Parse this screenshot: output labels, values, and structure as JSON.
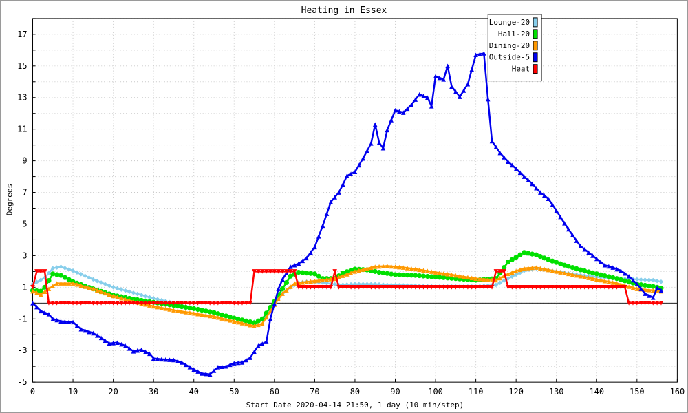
{
  "chart_data": {
    "type": "line",
    "title": "Heating in Essex",
    "xlabel": "Start Date 2020-04-14 21:50, 1 day (10 min/step)",
    "ylabel": "Degrees",
    "xlim": [
      0,
      160
    ],
    "ylim": [
      -5,
      18
    ],
    "xticks": [
      "0",
      "10",
      "20",
      "30",
      "40",
      "50",
      "60",
      "70",
      "80",
      "90",
      "100",
      "110",
      "120",
      "130",
      "140",
      "150",
      "160"
    ],
    "yticks": [
      "-5",
      "-3",
      "-1",
      "1",
      "3",
      "5",
      "7",
      "9",
      "11",
      "13",
      "15",
      "17"
    ],
    "grid": true,
    "legend_position": "top-right",
    "series": [
      {
        "name": "Lounge-20",
        "color": "#87ceeb",
        "marker": "diamond",
        "keypoints": [
          [
            0,
            1.2
          ],
          [
            3,
            1.6
          ],
          [
            5,
            2.2
          ],
          [
            7,
            2.3
          ],
          [
            10,
            2.05
          ],
          [
            15,
            1.5
          ],
          [
            20,
            1.0
          ],
          [
            25,
            0.65
          ],
          [
            30,
            0.3
          ],
          [
            35,
            0.0
          ],
          [
            40,
            -0.35
          ],
          [
            45,
            -0.65
          ],
          [
            50,
            -0.95
          ],
          [
            53,
            -1.15
          ],
          [
            56,
            -1.2
          ],
          [
            58,
            -0.9
          ],
          [
            60,
            -0.1
          ],
          [
            62,
            0.6
          ],
          [
            64,
            1.0
          ],
          [
            66,
            1.3
          ],
          [
            68,
            1.35
          ],
          [
            72,
            1.3
          ],
          [
            76,
            1.15
          ],
          [
            80,
            1.2
          ],
          [
            85,
            1.2
          ],
          [
            88,
            1.15
          ],
          [
            95,
            1.1
          ],
          [
            100,
            1.05
          ],
          [
            110,
            1.05
          ],
          [
            115,
            1.15
          ],
          [
            118,
            1.55
          ],
          [
            122,
            2.05
          ],
          [
            125,
            2.2
          ],
          [
            130,
            2.0
          ],
          [
            135,
            1.8
          ],
          [
            140,
            1.65
          ],
          [
            145,
            1.55
          ],
          [
            150,
            1.5
          ],
          [
            154,
            1.45
          ],
          [
            156,
            1.35
          ]
        ]
      },
      {
        "name": "Hall-20",
        "color": "#00e000",
        "marker": "circle",
        "keypoints": [
          [
            0,
            0.8
          ],
          [
            2,
            0.75
          ],
          [
            3,
            1.0
          ],
          [
            5,
            1.85
          ],
          [
            7,
            1.75
          ],
          [
            10,
            1.35
          ],
          [
            15,
            0.9
          ],
          [
            20,
            0.5
          ],
          [
            25,
            0.25
          ],
          [
            30,
            0.05
          ],
          [
            35,
            -0.15
          ],
          [
            40,
            -0.35
          ],
          [
            45,
            -0.6
          ],
          [
            50,
            -0.95
          ],
          [
            55,
            -1.25
          ],
          [
            57,
            -1.0
          ],
          [
            60,
            0.1
          ],
          [
            62,
            0.9
          ],
          [
            64,
            1.7
          ],
          [
            66,
            1.95
          ],
          [
            70,
            1.85
          ],
          [
            72,
            1.55
          ],
          [
            75,
            1.55
          ],
          [
            77,
            1.9
          ],
          [
            80,
            2.15
          ],
          [
            83,
            2.1
          ],
          [
            86,
            1.95
          ],
          [
            90,
            1.8
          ],
          [
            95,
            1.75
          ],
          [
            100,
            1.65
          ],
          [
            105,
            1.55
          ],
          [
            110,
            1.45
          ],
          [
            115,
            1.55
          ],
          [
            118,
            2.6
          ],
          [
            122,
            3.2
          ],
          [
            125,
            3.05
          ],
          [
            128,
            2.75
          ],
          [
            132,
            2.4
          ],
          [
            136,
            2.1
          ],
          [
            140,
            1.85
          ],
          [
            145,
            1.55
          ],
          [
            150,
            1.2
          ],
          [
            154,
            1.05
          ],
          [
            156,
            0.95
          ]
        ]
      },
      {
        "name": "Dining-20",
        "color": "#ff9900",
        "marker": "triangle",
        "keypoints": [
          [
            0,
            0.75
          ],
          [
            2,
            0.55
          ],
          [
            4,
            0.9
          ],
          [
            6,
            1.25
          ],
          [
            10,
            1.25
          ],
          [
            15,
            0.9
          ],
          [
            20,
            0.45
          ],
          [
            25,
            0.1
          ],
          [
            30,
            -0.2
          ],
          [
            35,
            -0.45
          ],
          [
            40,
            -0.65
          ],
          [
            45,
            -0.85
          ],
          [
            50,
            -1.15
          ],
          [
            55,
            -1.45
          ],
          [
            57,
            -1.3
          ],
          [
            60,
            -0.1
          ],
          [
            62,
            0.6
          ],
          [
            65,
            1.25
          ],
          [
            70,
            1.4
          ],
          [
            75,
            1.55
          ],
          [
            80,
            2.0
          ],
          [
            85,
            2.3
          ],
          [
            88,
            2.35
          ],
          [
            92,
            2.25
          ],
          [
            95,
            2.15
          ],
          [
            100,
            1.95
          ],
          [
            105,
            1.75
          ],
          [
            110,
            1.55
          ],
          [
            115,
            1.45
          ],
          [
            118,
            1.85
          ],
          [
            122,
            2.2
          ],
          [
            125,
            2.25
          ],
          [
            130,
            2.0
          ],
          [
            135,
            1.75
          ],
          [
            140,
            1.5
          ],
          [
            145,
            1.25
          ],
          [
            150,
            0.9
          ],
          [
            154,
            0.8
          ],
          [
            156,
            0.75
          ]
        ]
      },
      {
        "name": "Outside-5",
        "color": "#0000ee",
        "marker": "triangle",
        "keypoints": [
          [
            0,
            0.0
          ],
          [
            2,
            -0.5
          ],
          [
            4,
            -0.7
          ],
          [
            5,
            -1.0
          ],
          [
            7,
            -1.15
          ],
          [
            10,
            -1.2
          ],
          [
            12,
            -1.65
          ],
          [
            15,
            -1.9
          ],
          [
            17,
            -2.2
          ],
          [
            19,
            -2.55
          ],
          [
            21,
            -2.5
          ],
          [
            23,
            -2.7
          ],
          [
            25,
            -3.05
          ],
          [
            27,
            -2.95
          ],
          [
            29,
            -3.2
          ],
          [
            30,
            -3.5
          ],
          [
            32,
            -3.55
          ],
          [
            35,
            -3.6
          ],
          [
            37,
            -3.75
          ],
          [
            40,
            -4.2
          ],
          [
            42,
            -4.45
          ],
          [
            44,
            -4.5
          ],
          [
            46,
            -4.05
          ],
          [
            48,
            -4.0
          ],
          [
            50,
            -3.8
          ],
          [
            52,
            -3.75
          ],
          [
            54,
            -3.45
          ],
          [
            56,
            -2.7
          ],
          [
            58,
            -2.45
          ],
          [
            59,
            -1.0
          ],
          [
            60,
            -0.05
          ],
          [
            61,
            0.9
          ],
          [
            62,
            1.5
          ],
          [
            64,
            2.3
          ],
          [
            66,
            2.5
          ],
          [
            68,
            2.85
          ],
          [
            70,
            3.55
          ],
          [
            72,
            4.9
          ],
          [
            74,
            6.4
          ],
          [
            76,
            7.0
          ],
          [
            77,
            7.5
          ],
          [
            78,
            8.05
          ],
          [
            80,
            8.3
          ],
          [
            82,
            9.15
          ],
          [
            84,
            10.1
          ],
          [
            85,
            11.3
          ],
          [
            86,
            10.15
          ],
          [
            87,
            9.8
          ],
          [
            88,
            10.95
          ],
          [
            90,
            12.2
          ],
          [
            92,
            12.05
          ],
          [
            94,
            12.55
          ],
          [
            96,
            13.2
          ],
          [
            98,
            13.0
          ],
          [
            99,
            12.45
          ],
          [
            100,
            14.35
          ],
          [
            102,
            14.15
          ],
          [
            103,
            15.0
          ],
          [
            104,
            13.7
          ],
          [
            106,
            13.05
          ],
          [
            108,
            13.85
          ],
          [
            110,
            15.7
          ],
          [
            112,
            15.8
          ],
          [
            113,
            12.9
          ],
          [
            114,
            10.25
          ],
          [
            116,
            9.5
          ],
          [
            118,
            8.95
          ],
          [
            120,
            8.5
          ],
          [
            122,
            8.0
          ],
          [
            124,
            7.55
          ],
          [
            126,
            7.0
          ],
          [
            128,
            6.6
          ],
          [
            130,
            5.85
          ],
          [
            132,
            5.05
          ],
          [
            134,
            4.3
          ],
          [
            136,
            3.6
          ],
          [
            138,
            3.2
          ],
          [
            140,
            2.8
          ],
          [
            142,
            2.4
          ],
          [
            144,
            2.25
          ],
          [
            146,
            2.05
          ],
          [
            148,
            1.7
          ],
          [
            150,
            1.2
          ],
          [
            152,
            0.6
          ],
          [
            154,
            0.35
          ],
          [
            155,
            0.95
          ],
          [
            156,
            0.8
          ]
        ]
      },
      {
        "name": "Heat",
        "color": "#ff0000",
        "marker": "triangle-down",
        "keypoints": [
          [
            0,
            1.0
          ],
          [
            0.5,
            2.0
          ],
          [
            3,
            2.0
          ],
          [
            4,
            0.0
          ],
          [
            54,
            0.0
          ],
          [
            55,
            2.0
          ],
          [
            65,
            2.0
          ],
          [
            66,
            1.0
          ],
          [
            74,
            1.0
          ],
          [
            75,
            2.0
          ],
          [
            76,
            1.0
          ],
          [
            114,
            1.0
          ],
          [
            115,
            2.0
          ],
          [
            117,
            2.0
          ],
          [
            118,
            1.0
          ],
          [
            147,
            1.0
          ],
          [
            148,
            0.0
          ],
          [
            156,
            0.0
          ]
        ]
      }
    ]
  }
}
